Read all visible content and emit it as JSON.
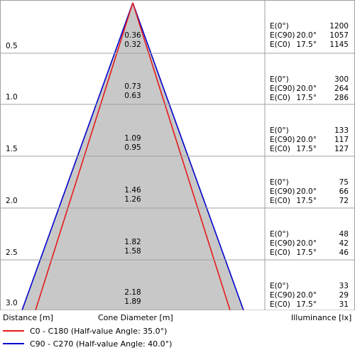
{
  "headers": {
    "distance": "Distance [m]",
    "cone_diameter": "Cone Diameter [m]",
    "illuminance": "Illuminance [lx]"
  },
  "legend": [
    {
      "label": "C0 - C180 (Half-value Angle: 35.0°)",
      "color": "#e41a1c"
    },
    {
      "label": "C90 - C270 (Half-value Angle: 40.0°)",
      "color": "#0000cc"
    }
  ],
  "colors": {
    "cone_fill": "#c8c8c8",
    "grid": "#a0a0a0",
    "c90_line": "#0000cc",
    "c0_line": "#e41a1c"
  },
  "max_distance": 3.0,
  "half_angles_deg": {
    "c0": 35.0,
    "c90": 40.0
  },
  "rows": [
    {
      "distance": "0.5",
      "dia_c90": "0.36",
      "dia_c0": "0.32",
      "labels": [
        "E(0°)",
        "E(C90)",
        "E(C0)"
      ],
      "angles": [
        "",
        "20.0°",
        "17.5°"
      ],
      "values": [
        "1200",
        "1057",
        "1145"
      ]
    },
    {
      "distance": "1.0",
      "dia_c90": "0.73",
      "dia_c0": "0.63",
      "labels": [
        "E(0°)",
        "E(C90)",
        "E(C0)"
      ],
      "angles": [
        "",
        "20.0°",
        "17.5°"
      ],
      "values": [
        "300",
        "264",
        "286"
      ]
    },
    {
      "distance": "1.5",
      "dia_c90": "1.09",
      "dia_c0": "0.95",
      "labels": [
        "E(0°)",
        "E(C90)",
        "E(C0)"
      ],
      "angles": [
        "",
        "20.0°",
        "17.5°"
      ],
      "values": [
        "133",
        "117",
        "127"
      ]
    },
    {
      "distance": "2.0",
      "dia_c90": "1.46",
      "dia_c0": "1.26",
      "labels": [
        "E(0°)",
        "E(C90)",
        "E(C0)"
      ],
      "angles": [
        "",
        "20.0°",
        "17.5°"
      ],
      "values": [
        "75",
        "66",
        "72"
      ]
    },
    {
      "distance": "2.5",
      "dia_c90": "1.82",
      "dia_c0": "1.58",
      "labels": [
        "E(0°)",
        "E(C90)",
        "E(C0)"
      ],
      "angles": [
        "",
        "20.0°",
        "17.5°"
      ],
      "values": [
        "48",
        "42",
        "46"
      ]
    },
    {
      "distance": "3.0",
      "dia_c90": "2.18",
      "dia_c0": "1.89",
      "labels": [
        "E(0°)",
        "E(C90)",
        "E(C0)"
      ],
      "angles": [
        "",
        "20.0°",
        "17.5°"
      ],
      "values": [
        "33",
        "29",
        "31"
      ]
    }
  ]
}
